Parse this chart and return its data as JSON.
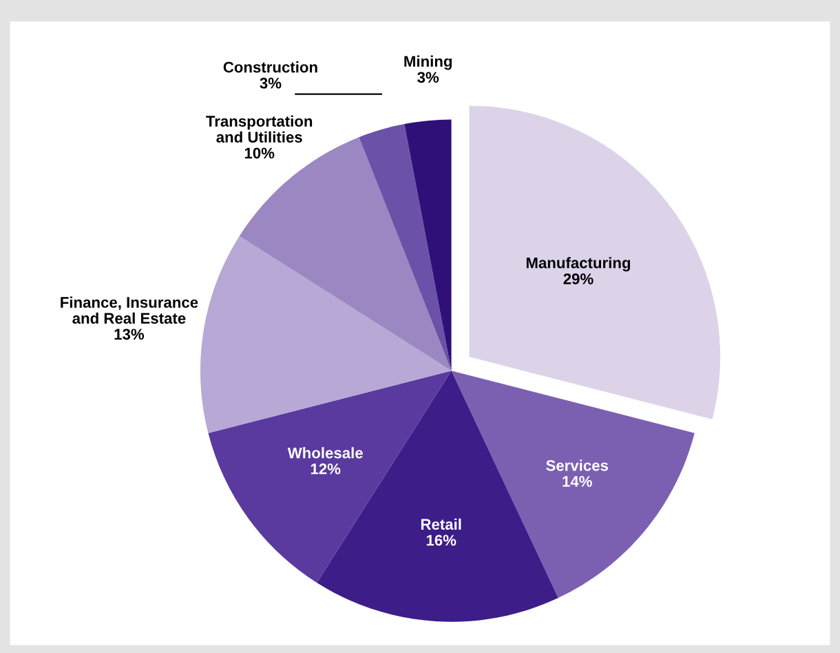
{
  "chart_data": {
    "type": "pie",
    "categories": [
      "Manufacturing",
      "Services",
      "Retail",
      "Wholesale",
      "Finance, Insurance\nand Real Estate",
      "Transportation\nand Utilities",
      "Construction",
      "Mining"
    ],
    "values": [
      29,
      14,
      16,
      12,
      13,
      10,
      3,
      3
    ],
    "value_labels": [
      "29%",
      "14%",
      "16%",
      "12%",
      "13%",
      "10%",
      "3%",
      "3%"
    ],
    "colors": [
      "#dcd3e9",
      "#7b60b2",
      "#3d1d88",
      "#5a3a9f",
      "#b7a8d6",
      "#9b87c2",
      "#6b51a8",
      "#2f1079"
    ]
  }
}
